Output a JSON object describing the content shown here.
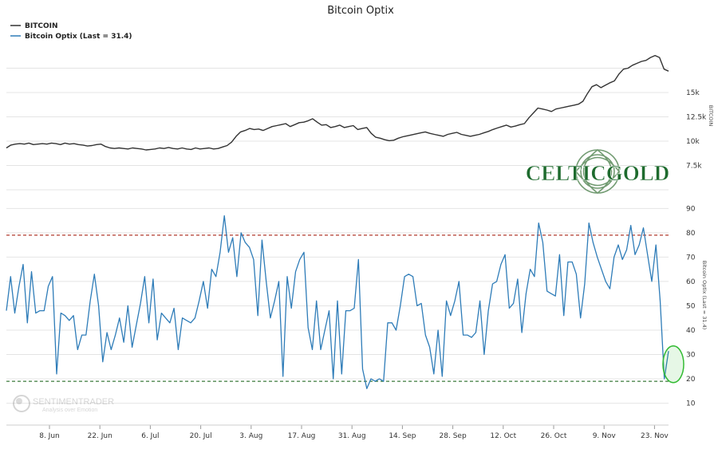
{
  "chart_data": {
    "type": "line",
    "title": "Bitcoin Optix",
    "legend": {
      "placement": "top-left",
      "entries": [
        {
          "name": "BITCOIN",
          "color": "#333333"
        },
        {
          "name": "Bitcoin Optix (Last = 31.4)",
          "color": "#2e7cb8"
        }
      ]
    },
    "x_tick_labels": [
      "8. Jun",
      "22. Jun",
      "6. Jul",
      "20. Jul",
      "3. Aug",
      "17. Aug",
      "31. Aug",
      "14. Sep",
      "28. Sep",
      "12. Oct",
      "26. Oct",
      "9. Nov",
      "23. Nov"
    ],
    "upper_panel": {
      "axis_label": "BITCOIN",
      "ticks": [
        "15k",
        "12.5k",
        "10k",
        "7.5k"
      ],
      "ylim": [
        5000,
        20000
      ],
      "series": {
        "name": "BITCOIN",
        "color": "#333333",
        "values": [
          9300,
          9600,
          9700,
          9750,
          9700,
          9800,
          9650,
          9700,
          9750,
          9700,
          9800,
          9750,
          9650,
          9800,
          9700,
          9750,
          9650,
          9600,
          9500,
          9550,
          9650,
          9700,
          9450,
          9300,
          9250,
          9300,
          9250,
          9200,
          9300,
          9250,
          9200,
          9100,
          9150,
          9200,
          9300,
          9250,
          9350,
          9250,
          9200,
          9300,
          9200,
          9150,
          9300,
          9200,
          9250,
          9300,
          9200,
          9250,
          9400,
          9550,
          9900,
          10500,
          10950,
          11100,
          11300,
          11200,
          11250,
          11100,
          11300,
          11500,
          11600,
          11700,
          11800,
          11500,
          11700,
          11900,
          11950,
          12100,
          12300,
          11950,
          11650,
          11700,
          11400,
          11500,
          11650,
          11400,
          11500,
          11600,
          11200,
          11300,
          11400,
          10800,
          10400,
          10300,
          10150,
          10050,
          10100,
          10300,
          10450,
          10550,
          10650,
          10750,
          10850,
          10950,
          10800,
          10700,
          10600,
          10500,
          10700,
          10800,
          10900,
          10700,
          10600,
          10500,
          10600,
          10700,
          10850,
          11000,
          11200,
          11350,
          11500,
          11650,
          11450,
          11550,
          11700,
          11800,
          12400,
          12900,
          13400,
          13300,
          13200,
          13050,
          13300,
          13400,
          13500,
          13600,
          13700,
          13800,
          14100,
          14900,
          15600,
          15800,
          15500,
          15750,
          16000,
          16200,
          16900,
          17400,
          17500,
          17800,
          18000,
          18200,
          18300,
          18600,
          18800,
          18600,
          17400,
          17200
        ],
        "last_value": 17200
      }
    },
    "lower_panel": {
      "axis_label": "Bitcoin Optix (Last = 31.4)",
      "ticks": [
        "90",
        "80",
        "70",
        "60",
        "50",
        "40",
        "30",
        "20",
        "10"
      ],
      "ylim": [
        2,
        96
      ],
      "upper_threshold": {
        "value": 79,
        "color": "#b03a2e"
      },
      "lower_threshold": {
        "value": 19,
        "color": "#3b7a3b"
      },
      "series": {
        "name": "Bitcoin Optix",
        "color": "#2e7cb8",
        "values": [
          48,
          62,
          47,
          58,
          67,
          43,
          64,
          47,
          48,
          48,
          58,
          62,
          22,
          47,
          46,
          44,
          46,
          32,
          38,
          38,
          52,
          63,
          50,
          27,
          39,
          32,
          38,
          45,
          35,
          50,
          33,
          42,
          51,
          62,
          43,
          61,
          36,
          47,
          45,
          43,
          49,
          32,
          45,
          44,
          43,
          45,
          52,
          60,
          49,
          65,
          62,
          72,
          87,
          72,
          78,
          62,
          80,
          76,
          74,
          69,
          46,
          77,
          60,
          45,
          52,
          60,
          21,
          62,
          49,
          64,
          69,
          72,
          41,
          32,
          52,
          32,
          40,
          48,
          20,
          52,
          22,
          48,
          48,
          49,
          69,
          24,
          16,
          20,
          19,
          20,
          19,
          43,
          43,
          40,
          50,
          62,
          63,
          62,
          50,
          51,
          38,
          33,
          22,
          40,
          21,
          52,
          46,
          52,
          60,
          38,
          38,
          37,
          39,
          52,
          30,
          48,
          59,
          60,
          67,
          71,
          49,
          51,
          61,
          39,
          55,
          65,
          62,
          84,
          76,
          56,
          55,
          54,
          71,
          46,
          68,
          68,
          63,
          45,
          59,
          84,
          76,
          70,
          65,
          60,
          57,
          70,
          75,
          69,
          73,
          83,
          71,
          75,
          82,
          71,
          60,
          75,
          52,
          20,
          31.4
        ],
        "last_value": 31.4,
        "highlight_marker": {
          "value": 26,
          "color": "#33bb33"
        }
      }
    }
  },
  "watermarks": {
    "celticgold": "CELTICGOLD",
    "sentimentrader": "SENTIMENTRADER",
    "sentimentrader_tagline": "Analysis over Emotion"
  }
}
